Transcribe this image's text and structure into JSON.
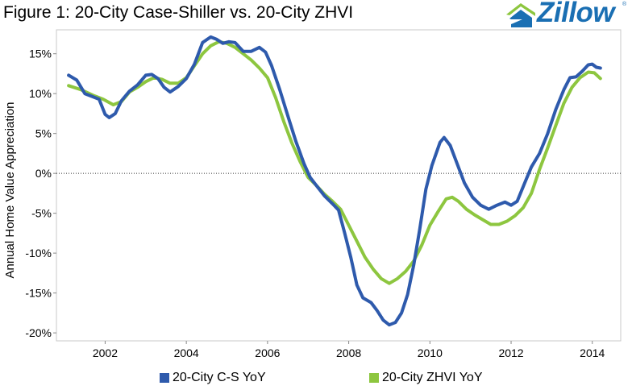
{
  "title": "Figure 1: 20-City Case-Shiller vs. 20-City ZHVI",
  "logo": {
    "text": "Zillow",
    "mark": "®",
    "color": "#1a6fb3",
    "icon": "zillow-house-icon"
  },
  "chart_data": {
    "type": "line",
    "title": "Figure 1: 20-City Case-Shiller vs. 20-City ZHVI",
    "xlabel": "",
    "ylabel": "Annual Home Value Appreciation",
    "xlim": [
      2000.8,
      2014.7
    ],
    "ylim": [
      -21,
      18
    ],
    "x_ticks": [
      2002,
      2004,
      2006,
      2008,
      2010,
      2012,
      2014
    ],
    "x_tick_labels": [
      "2002",
      "2004",
      "2006",
      "2008",
      "2010",
      "2012",
      "2014"
    ],
    "y_ticks": [
      15,
      10,
      5,
      0,
      -5,
      -10,
      -15,
      -20
    ],
    "y_tick_labels": [
      "15%",
      "10%",
      "5%",
      "0%",
      "-5%",
      "-10%",
      "-15%",
      "-20%"
    ],
    "zero_line": "dotted",
    "grid": false,
    "legend_position": "bottom",
    "series": [
      {
        "name": "20-City C-S YoY",
        "color": "#2e5aac",
        "points": [
          [
            2001.1,
            12.3
          ],
          [
            2001.3,
            11.7
          ],
          [
            2001.5,
            10.0
          ],
          [
            2001.7,
            9.6
          ],
          [
            2001.85,
            9.3
          ],
          [
            2002.0,
            7.4
          ],
          [
            2002.1,
            7.0
          ],
          [
            2002.25,
            7.5
          ],
          [
            2002.4,
            9.1
          ],
          [
            2002.6,
            10.3
          ],
          [
            2002.8,
            11.1
          ],
          [
            2003.0,
            12.3
          ],
          [
            2003.15,
            12.4
          ],
          [
            2003.3,
            11.9
          ],
          [
            2003.45,
            10.8
          ],
          [
            2003.6,
            10.2
          ],
          [
            2003.8,
            10.9
          ],
          [
            2004.0,
            11.9
          ],
          [
            2004.2,
            13.7
          ],
          [
            2004.4,
            16.4
          ],
          [
            2004.6,
            17.1
          ],
          [
            2004.75,
            16.8
          ],
          [
            2004.9,
            16.3
          ],
          [
            2005.05,
            16.5
          ],
          [
            2005.2,
            16.4
          ],
          [
            2005.4,
            15.3
          ],
          [
            2005.6,
            15.3
          ],
          [
            2005.8,
            15.8
          ],
          [
            2005.95,
            15.2
          ],
          [
            2006.1,
            13.5
          ],
          [
            2006.3,
            10.5
          ],
          [
            2006.5,
            7.2
          ],
          [
            2006.7,
            4.0
          ],
          [
            2006.9,
            1.2
          ],
          [
            2007.05,
            -0.5
          ],
          [
            2007.2,
            -1.5
          ],
          [
            2007.4,
            -2.8
          ],
          [
            2007.6,
            -3.8
          ],
          [
            2007.75,
            -4.6
          ],
          [
            2007.9,
            -7.5
          ],
          [
            2008.05,
            -10.5
          ],
          [
            2008.2,
            -14.0
          ],
          [
            2008.35,
            -15.6
          ],
          [
            2008.55,
            -16.2
          ],
          [
            2008.7,
            -17.2
          ],
          [
            2008.85,
            -18.4
          ],
          [
            2009.0,
            -19.0
          ],
          [
            2009.15,
            -18.7
          ],
          [
            2009.3,
            -17.5
          ],
          [
            2009.45,
            -15.2
          ],
          [
            2009.6,
            -11.5
          ],
          [
            2009.75,
            -7.0
          ],
          [
            2009.9,
            -2.0
          ],
          [
            2010.05,
            1.0
          ],
          [
            2010.25,
            3.9
          ],
          [
            2010.35,
            4.5
          ],
          [
            2010.5,
            3.5
          ],
          [
            2010.65,
            1.5
          ],
          [
            2010.85,
            -1.2
          ],
          [
            2011.05,
            -3.0
          ],
          [
            2011.25,
            -4.0
          ],
          [
            2011.45,
            -4.5
          ],
          [
            2011.65,
            -4.0
          ],
          [
            2011.85,
            -3.6
          ],
          [
            2012.0,
            -4.0
          ],
          [
            2012.15,
            -3.5
          ],
          [
            2012.35,
            -1.0
          ],
          [
            2012.5,
            0.8
          ],
          [
            2012.7,
            2.5
          ],
          [
            2012.9,
            5.0
          ],
          [
            2013.1,
            8.0
          ],
          [
            2013.3,
            10.5
          ],
          [
            2013.45,
            12.0
          ],
          [
            2013.6,
            12.1
          ],
          [
            2013.75,
            12.8
          ],
          [
            2013.9,
            13.6
          ],
          [
            2014.0,
            13.7
          ],
          [
            2014.1,
            13.3
          ],
          [
            2014.2,
            13.2
          ]
        ]
      },
      {
        "name": "20-City ZHVI YoY",
        "color": "#8dc63f",
        "points": [
          [
            2001.1,
            11.0
          ],
          [
            2001.4,
            10.5
          ],
          [
            2001.7,
            9.8
          ],
          [
            2001.95,
            9.3
          ],
          [
            2002.2,
            8.6
          ],
          [
            2002.4,
            9.0
          ],
          [
            2002.6,
            10.2
          ],
          [
            2002.8,
            10.8
          ],
          [
            2003.0,
            11.5
          ],
          [
            2003.2,
            12.0
          ],
          [
            2003.4,
            11.8
          ],
          [
            2003.6,
            11.3
          ],
          [
            2003.8,
            11.3
          ],
          [
            2004.0,
            12.0
          ],
          [
            2004.2,
            13.5
          ],
          [
            2004.4,
            15.0
          ],
          [
            2004.6,
            16.0
          ],
          [
            2004.8,
            16.5
          ],
          [
            2005.0,
            16.3
          ],
          [
            2005.2,
            15.8
          ],
          [
            2005.4,
            15.0
          ],
          [
            2005.6,
            14.2
          ],
          [
            2005.8,
            13.2
          ],
          [
            2006.0,
            12.0
          ],
          [
            2006.2,
            9.5
          ],
          [
            2006.4,
            6.5
          ],
          [
            2006.6,
            3.8
          ],
          [
            2006.8,
            1.5
          ],
          [
            2007.0,
            -0.5
          ],
          [
            2007.2,
            -1.5
          ],
          [
            2007.4,
            -2.6
          ],
          [
            2007.6,
            -3.5
          ],
          [
            2007.8,
            -4.5
          ],
          [
            2008.0,
            -6.5
          ],
          [
            2008.2,
            -8.5
          ],
          [
            2008.4,
            -10.5
          ],
          [
            2008.6,
            -12.0
          ],
          [
            2008.8,
            -13.2
          ],
          [
            2009.0,
            -13.8
          ],
          [
            2009.2,
            -13.2
          ],
          [
            2009.4,
            -12.3
          ],
          [
            2009.6,
            -11.0
          ],
          [
            2009.8,
            -9.0
          ],
          [
            2010.0,
            -6.5
          ],
          [
            2010.2,
            -4.8
          ],
          [
            2010.4,
            -3.2
          ],
          [
            2010.55,
            -3.0
          ],
          [
            2010.7,
            -3.5
          ],
          [
            2010.9,
            -4.5
          ],
          [
            2011.1,
            -5.2
          ],
          [
            2011.3,
            -5.8
          ],
          [
            2011.5,
            -6.4
          ],
          [
            2011.7,
            -6.4
          ],
          [
            2011.9,
            -6.0
          ],
          [
            2012.1,
            -5.3
          ],
          [
            2012.3,
            -4.3
          ],
          [
            2012.5,
            -2.5
          ],
          [
            2012.7,
            0.5
          ],
          [
            2012.9,
            3.2
          ],
          [
            2013.1,
            6.0
          ],
          [
            2013.3,
            8.8
          ],
          [
            2013.5,
            10.8
          ],
          [
            2013.7,
            12.0
          ],
          [
            2013.9,
            12.7
          ],
          [
            2014.05,
            12.6
          ],
          [
            2014.2,
            11.9
          ]
        ]
      }
    ]
  }
}
